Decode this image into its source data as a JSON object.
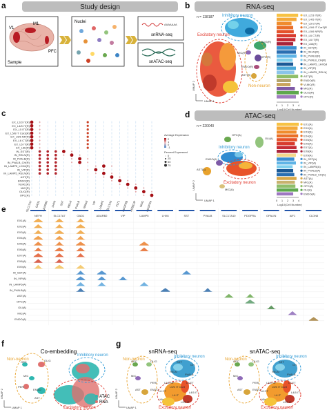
{
  "panel_a": {
    "label": "a",
    "header": "Study design",
    "brain_labels": [
      "V1",
      "M1",
      "PFC"
    ],
    "sample_label": "Sample",
    "nuclei_label": "Nuclei",
    "sn_rna_label": "snRNA-seq",
    "sn_atac_label": "snATAC-seq",
    "rna_strand_text": "AAAAAAA"
  },
  "panel_b": {
    "label": "b",
    "header": "RNA-seq",
    "n_text": "n = 138187",
    "axis_x": "UMAP 1",
    "axis_y": "UMAP 2",
    "groups": {
      "inhibitory": "Inhibitory neuron",
      "excitatory": "Excitatory neuron",
      "non_neuron": "Non-neuron"
    },
    "cluster_labels": [
      "MIC(R)",
      "OLIG(R)",
      "OPC(R)",
      "ENDO(R)",
      "AST(R)"
    ],
    "legend": [
      "EX_L2/3 IT(R)",
      "EX_L4/5 IT(R)",
      "EX_L5 ET(R)",
      "EX_L5/6 IT Car3(R)",
      "EX_L5/6 NP(R)",
      "EX_L6 CT(R)",
      "EX_L6 IT(R)",
      "EX_L6b(R)",
      "IN_SST(R)",
      "IN_RELN(R)",
      "IN_PVALB(R)",
      "IN_PVALB_CH(R)",
      "IN_LAMP5_LHX6(R)",
      "IN_VIP(R)",
      "IN_LAMP5_RELN(R)",
      "AST(R)",
      "ENDO(R)",
      "VLMC(R)",
      "MIC(R)",
      "OLIG(R)",
      "OPC(R)"
    ],
    "bar_values": [
      3.9,
      3.6,
      2.7,
      3.0,
      3.1,
      3.5,
      3.4,
      3.0,
      3.6,
      3.5,
      3.6,
      2.9,
      3.0,
      3.5,
      3.2,
      3.9,
      2.6,
      2.5,
      3.3,
      4.0,
      3.5
    ],
    "bar_ticks": [
      "0",
      "1",
      "2",
      "3",
      "4"
    ],
    "bar_xlabel": "Log10(Cell Number)"
  },
  "panel_c": {
    "label": "c",
    "rows": [
      "EX_L2/3 IT(R)",
      "EX_L4/5 IT(R)",
      "EX_L5 ET(R)",
      "EX_L5/6 IT Car3(R)",
      "EX_L5/6 NP(R)",
      "EX_L6 CT(R)",
      "EX_L6 IT(R)",
      "EX_L6b(R)",
      "IN_SST(R)",
      "IN_RELN(R)",
      "IN_PVALB(R)",
      "IN_PVALB_CH(R)",
      "IN_LAMP5_LHX6(R)",
      "IN_VIP(R)",
      "IN_LAMP5_RELN(R)",
      "AST(R)",
      "ENDO(R)",
      "VLMC(R)",
      "MIC(R)",
      "OLIG(R)",
      "OPC(R)"
    ],
    "genes": [
      "SLC17A7",
      "GAD1",
      "ADARB2",
      "LHX6",
      "SST",
      "RELN",
      "PVALB",
      "NRGN",
      "VIP",
      "LAMP5",
      "SLC1A3",
      "FLT1",
      "PDGFRB",
      "APBB1IP",
      "MOG",
      "PDGFRA"
    ],
    "legend_expr": "Average Expression",
    "legend_pct": "Percent Expressed",
    "expr_ticks": [
      "2",
      "1",
      "0",
      "-1"
    ],
    "pct_ticks": [
      "0",
      "25",
      "50",
      "75"
    ]
  },
  "panel_d": {
    "label": "d",
    "header": "ATAC-seq",
    "n_text": "n = 220040",
    "axis_x": "UMAP 1",
    "axis_y": "UMAP 2",
    "groups": {
      "inhibitory": "Inhibitory neuron",
      "excitatory": "Excitatory neuron"
    },
    "cluster_labels": [
      "OPC(A)",
      "OLI(A)",
      "ENDO(A)",
      "AST(A)",
      "MIC(A)"
    ],
    "legend": [
      "EX1(A)",
      "EX2(A)",
      "EX3(A)",
      "EX4(A)",
      "EX5(A)",
      "EX6(A)",
      "EX7(A)",
      "EX8(A)",
      "EX9(A)",
      "IN_SST(A)",
      "IN_VIP(A)",
      "IN_LAMP5(A)",
      "IN_PVALB(A)",
      "IN_PVALB_CH(A)",
      "AST(A)",
      "MIC(A)",
      "OPC(A)",
      "OLI(A)",
      "ENDO(A)"
    ],
    "bar_values": [
      4.0,
      3.8,
      3.6,
      3.9,
      3.7,
      3.3,
      3.6,
      3.8,
      3.5,
      3.2,
      3.5,
      2.9,
      3.0,
      3.2,
      3.6,
      3.3,
      3.4,
      3.9,
      3.0
    ],
    "bar_ticks": [
      "0",
      "1",
      "2",
      "3",
      "4"
    ],
    "bar_xlabel": "Log10(Cell Number)"
  },
  "panel_e": {
    "label": "e",
    "genes": [
      "NEFH",
      "SLC17A7",
      "GAD1",
      "ADARB2",
      "VIP",
      "LAMP5",
      "LHX6",
      "SST",
      "PVALB",
      "SLC17A10",
      "PDGFRA",
      "OPALIN",
      "AIF1",
      "CLDN5"
    ],
    "tracks": [
      "EX1(A)",
      "EX2(A)",
      "EX3(A)",
      "EX4(A)",
      "EX5(A)",
      "EX6(A)",
      "EX7(A)",
      "EX8(A)",
      "EX9(A)",
      "IN_SST(A)",
      "IN_VIP(A)",
      "IN_LAMP5(A)",
      "IN_PVALB(A)",
      "AST(A)",
      "OPC(A)",
      "OLI(A)",
      "MIC(A)",
      "ENDO(A)"
    ]
  },
  "panel_f": {
    "label": "f",
    "title": "Co-embedding",
    "groups": {
      "inhibitory": "Inhibitory neuron",
      "excitatory": "Excitatory neuron",
      "non_neuron": "Non-neuron"
    },
    "cluster_labels": [
      "OPC",
      "OLIG",
      "MIC",
      "PERI",
      "ENDO",
      "AST"
    ],
    "legend": [
      "ATAC",
      "RNA"
    ],
    "axis_x": "UMAP 1",
    "axis_y": "UMAP 2"
  },
  "panel_g": {
    "label": "g",
    "title_left": "snRNA-seq",
    "title_right": "snATAC-seq",
    "groups": {
      "inhibitory": "Inhibitory neuron",
      "excitatory": "Excitatory neuron",
      "non_neuron": "Non-neuron"
    },
    "cluster_labels": [
      "OPC",
      "OLIG",
      "MIC",
      "AST",
      "PERI",
      "ENDO",
      "RELN",
      "SST",
      "PVALB",
      "CH",
      "L5/6 NP",
      "L6 CT",
      "L5 ET",
      "L6b",
      "L5/6 IT Car3",
      "L6 IT",
      "L2/3 IT",
      "L4/5 IT"
    ],
    "axis_x": "UMAP 1",
    "axis_y": "UMAP 2"
  },
  "colors": {
    "excitatory": "#e03a2f",
    "inhibitory": "#2f9ad6",
    "non_neuron": "#e8a22c",
    "atac": "#2fb7b0",
    "rna": "#e0706e"
  }
}
